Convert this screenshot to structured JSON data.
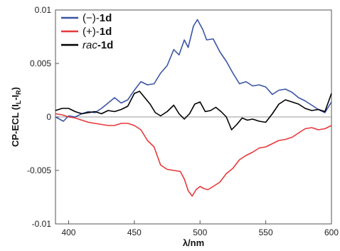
{
  "chart_data": {
    "type": "line",
    "xlabel": "λ/nm",
    "ylabel": {
      "prefix": "CP-ECL (I",
      "sub1": "L",
      "mid": "-I",
      "sub2": "R",
      "suffix": ")"
    },
    "xlim": [
      390,
      600
    ],
    "ylim": [
      -0.01,
      0.01
    ],
    "x_ticks": [
      400,
      450,
      500,
      550,
      600
    ],
    "x_tick_labels": [
      "400",
      "450",
      "500",
      "550",
      "600"
    ],
    "y_ticks": [
      0.01,
      0.005,
      0,
      -0.005,
      -0.01
    ],
    "y_tick_labels": [
      "0.01",
      "0.005",
      "0",
      "-0.005",
      "-0.01"
    ],
    "zero_line": true,
    "legend_position": "top-left",
    "series": [
      {
        "name": "(−)-1d",
        "name_prefix": "(−)-",
        "name_compound": "1d",
        "color": "#3a55a4",
        "points": [
          [
            390,
            0.0
          ],
          [
            393,
            -0.0002
          ],
          [
            396,
            -0.0004
          ],
          [
            400,
            0.0001
          ],
          [
            405,
            0.0
          ],
          [
            410,
            0.0003
          ],
          [
            415,
            0.0005
          ],
          [
            420,
            0.0004
          ],
          [
            425,
            0.0008
          ],
          [
            430,
            0.0013
          ],
          [
            435,
            0.0018
          ],
          [
            440,
            0.0013
          ],
          [
            445,
            0.0016
          ],
          [
            450,
            0.0025
          ],
          [
            455,
            0.0033
          ],
          [
            460,
            0.003
          ],
          [
            465,
            0.0031
          ],
          [
            470,
            0.0041
          ],
          [
            475,
            0.0048
          ],
          [
            480,
            0.0063
          ],
          [
            484,
            0.0058
          ],
          [
            488,
            0.0072
          ],
          [
            491,
            0.0065
          ],
          [
            495,
            0.0085
          ],
          [
            498,
            0.0091
          ],
          [
            502,
            0.0082
          ],
          [
            505,
            0.0072
          ],
          [
            510,
            0.0073
          ],
          [
            515,
            0.0061
          ],
          [
            520,
            0.0052
          ],
          [
            525,
            0.0041
          ],
          [
            530,
            0.0031
          ],
          [
            535,
            0.0033
          ],
          [
            540,
            0.0029
          ],
          [
            545,
            0.003
          ],
          [
            550,
            0.0028
          ],
          [
            555,
            0.0021
          ],
          [
            560,
            0.0025
          ],
          [
            565,
            0.0026
          ],
          [
            570,
            0.0023
          ],
          [
            575,
            0.0018
          ],
          [
            580,
            0.0015
          ],
          [
            585,
            0.0011
          ],
          [
            590,
            0.0007
          ],
          [
            595,
            0.0004
          ],
          [
            600,
            0.0014
          ]
        ]
      },
      {
        "name": "(+)-1d",
        "name_prefix": "(+)-",
        "name_compound": "1d",
        "color": "#e8383b",
        "points": [
          [
            390,
            0.0003
          ],
          [
            395,
            0.0002
          ],
          [
            400,
            0.0
          ],
          [
            405,
            -0.0001
          ],
          [
            410,
            -0.0003
          ],
          [
            415,
            -0.0005
          ],
          [
            420,
            -0.0006
          ],
          [
            425,
            -0.0007
          ],
          [
            430,
            -0.0008
          ],
          [
            435,
            -0.0008
          ],
          [
            440,
            -0.0006
          ],
          [
            445,
            -0.0006
          ],
          [
            450,
            -0.0008
          ],
          [
            455,
            -0.0012
          ],
          [
            460,
            -0.0022
          ],
          [
            465,
            -0.0028
          ],
          [
            470,
            -0.0045
          ],
          [
            475,
            -0.0049
          ],
          [
            480,
            -0.005
          ],
          [
            485,
            -0.0051
          ],
          [
            488,
            -0.0058
          ],
          [
            491,
            -0.0069
          ],
          [
            494,
            -0.0074
          ],
          [
            497,
            -0.0068
          ],
          [
            500,
            -0.0065
          ],
          [
            503,
            -0.0067
          ],
          [
            506,
            -0.0068
          ],
          [
            510,
            -0.0065
          ],
          [
            515,
            -0.0061
          ],
          [
            520,
            -0.0053
          ],
          [
            525,
            -0.0048
          ],
          [
            530,
            -0.004
          ],
          [
            535,
            -0.0036
          ],
          [
            540,
            -0.0033
          ],
          [
            545,
            -0.0029
          ],
          [
            550,
            -0.0028
          ],
          [
            555,
            -0.0025
          ],
          [
            560,
            -0.0022
          ],
          [
            565,
            -0.0021
          ],
          [
            570,
            -0.0019
          ],
          [
            575,
            -0.0015
          ],
          [
            580,
            -0.0011
          ],
          [
            585,
            -0.001
          ],
          [
            590,
            -0.0012
          ],
          [
            595,
            -0.0011
          ],
          [
            600,
            -0.0008
          ]
        ]
      },
      {
        "name": "rac-1d",
        "name_prefix": "rac",
        "name_compound": "-1d",
        "color": "#000000",
        "points": [
          [
            390,
            0.0006
          ],
          [
            395,
            0.0008
          ],
          [
            400,
            0.0008
          ],
          [
            405,
            0.0005
          ],
          [
            410,
            0.0003
          ],
          [
            415,
            0.0004
          ],
          [
            420,
            0.0005
          ],
          [
            425,
            0.0003
          ],
          [
            430,
            0.0006
          ],
          [
            435,
            0.0005
          ],
          [
            440,
            0.0007
          ],
          [
            445,
            0.001
          ],
          [
            450,
            0.0022
          ],
          [
            454,
            0.0024
          ],
          [
            458,
            0.0018
          ],
          [
            462,
            0.0012
          ],
          [
            466,
            0.0004
          ],
          [
            470,
            0.0001
          ],
          [
            475,
            0.0005
          ],
          [
            480,
            0.0011
          ],
          [
            484,
            0.0003
          ],
          [
            488,
            -0.0002
          ],
          [
            492,
            0.0003
          ],
          [
            496,
            0.0012
          ],
          [
            500,
            0.0014
          ],
          [
            504,
            0.0005
          ],
          [
            508,
            0.0006
          ],
          [
            512,
            0.0009
          ],
          [
            516,
            0.0005
          ],
          [
            520,
            0.0
          ],
          [
            524,
            -0.0012
          ],
          [
            528,
            -0.0007
          ],
          [
            532,
            -0.0001
          ],
          [
            536,
            -0.0003
          ],
          [
            540,
            -0.0002
          ],
          [
            545,
            -0.0004
          ],
          [
            550,
            -0.0005
          ],
          [
            555,
            0.0003
          ],
          [
            560,
            0.0012
          ],
          [
            565,
            0.0016
          ],
          [
            570,
            0.0014
          ],
          [
            575,
            0.0012
          ],
          [
            580,
            0.0008
          ],
          [
            585,
            0.0006
          ],
          [
            590,
            0.0007
          ],
          [
            595,
            0.0005
          ],
          [
            600,
            0.0022
          ]
        ]
      }
    ]
  }
}
